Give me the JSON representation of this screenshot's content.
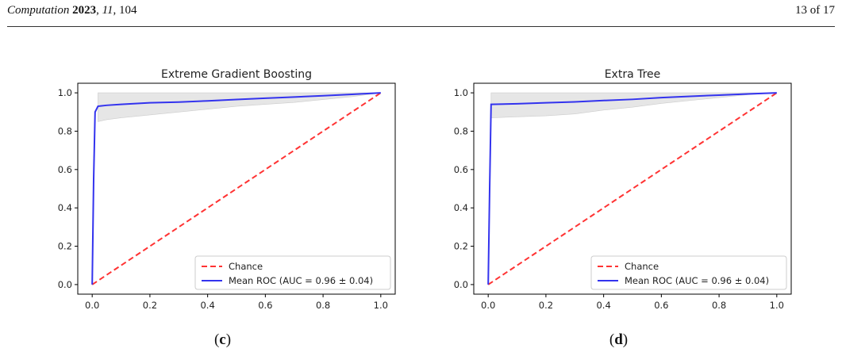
{
  "header": {
    "journal_name": "Computation",
    "year": "2023",
    "volume": "11",
    "article": "104",
    "page": "13 of 17"
  },
  "chart_data": [
    {
      "type": "line",
      "panel_label": "c",
      "title": "Extreme Gradient Boosting",
      "xlabel": "",
      "ylabel": "",
      "xlim": [
        -0.05,
        1.05
      ],
      "ylim": [
        -0.05,
        1.05
      ],
      "x_ticks": [
        "0.0",
        "0.2",
        "0.4",
        "0.6",
        "0.8",
        "1.0"
      ],
      "y_ticks": [
        "0.0",
        "0.2",
        "0.4",
        "0.6",
        "0.8",
        "1.0"
      ],
      "grid": false,
      "legend_position": "lower-right",
      "series": [
        {
          "name": "Chance",
          "color": "#ff3333",
          "style": "dashed",
          "x": [
            0,
            1
          ],
          "y": [
            0,
            1
          ]
        },
        {
          "name": "Mean ROC (AUC = 0.96 ± 0.04)",
          "color": "#3333ee",
          "style": "solid",
          "x": [
            0,
            0.005,
            0.01,
            0.02,
            0.05,
            0.1,
            0.2,
            0.3,
            0.4,
            0.5,
            0.6,
            0.7,
            0.8,
            0.9,
            1.0
          ],
          "y": [
            0,
            0.55,
            0.9,
            0.93,
            0.935,
            0.94,
            0.948,
            0.952,
            0.958,
            0.965,
            0.972,
            0.978,
            0.985,
            0.992,
            1.0
          ]
        }
      ],
      "band": {
        "color": "#e6e6e6",
        "x": [
          0.02,
          0.05,
          0.1,
          0.2,
          0.3,
          0.4,
          0.5,
          0.6,
          0.7,
          0.8,
          0.9,
          1.0
        ],
        "upper": [
          1.0,
          1.0,
          1.0,
          1.0,
          1.0,
          1.0,
          1.0,
          1.0,
          1.0,
          1.0,
          1.0,
          1.0
        ],
        "lower": [
          0.85,
          0.86,
          0.87,
          0.885,
          0.9,
          0.915,
          0.93,
          0.94,
          0.95,
          0.965,
          0.98,
          1.0
        ]
      }
    },
    {
      "type": "line",
      "panel_label": "d",
      "title": "Extra Tree",
      "xlabel": "",
      "ylabel": "",
      "xlim": [
        -0.05,
        1.05
      ],
      "ylim": [
        -0.05,
        1.05
      ],
      "x_ticks": [
        "0.0",
        "0.2",
        "0.4",
        "0.6",
        "0.8",
        "1.0"
      ],
      "y_ticks": [
        "0.0",
        "0.2",
        "0.4",
        "0.6",
        "0.8",
        "1.0"
      ],
      "grid": false,
      "legend_position": "lower-right",
      "series": [
        {
          "name": "Chance",
          "color": "#ff3333",
          "style": "dashed",
          "x": [
            0,
            1
          ],
          "y": [
            0,
            1
          ]
        },
        {
          "name": "Mean ROC (AUC = 0.96 ± 0.04)",
          "color": "#3333ee",
          "style": "solid",
          "x": [
            0,
            0.005,
            0.01,
            0.1,
            0.2,
            0.3,
            0.4,
            0.5,
            0.6,
            0.7,
            0.8,
            0.9,
            1.0
          ],
          "y": [
            0,
            0.5,
            0.94,
            0.943,
            0.948,
            0.953,
            0.96,
            0.966,
            0.975,
            0.982,
            0.988,
            0.994,
            1.0
          ]
        }
      ],
      "band": {
        "color": "#e6e6e6",
        "x": [
          0.01,
          0.1,
          0.2,
          0.3,
          0.4,
          0.5,
          0.6,
          0.7,
          0.8,
          0.9,
          1.0
        ],
        "upper": [
          1.0,
          1.0,
          1.0,
          1.0,
          1.0,
          1.0,
          1.0,
          1.0,
          1.0,
          1.0,
          1.0
        ],
        "lower": [
          0.87,
          0.875,
          0.88,
          0.89,
          0.91,
          0.925,
          0.945,
          0.96,
          0.975,
          0.99,
          1.0
        ]
      }
    }
  ]
}
